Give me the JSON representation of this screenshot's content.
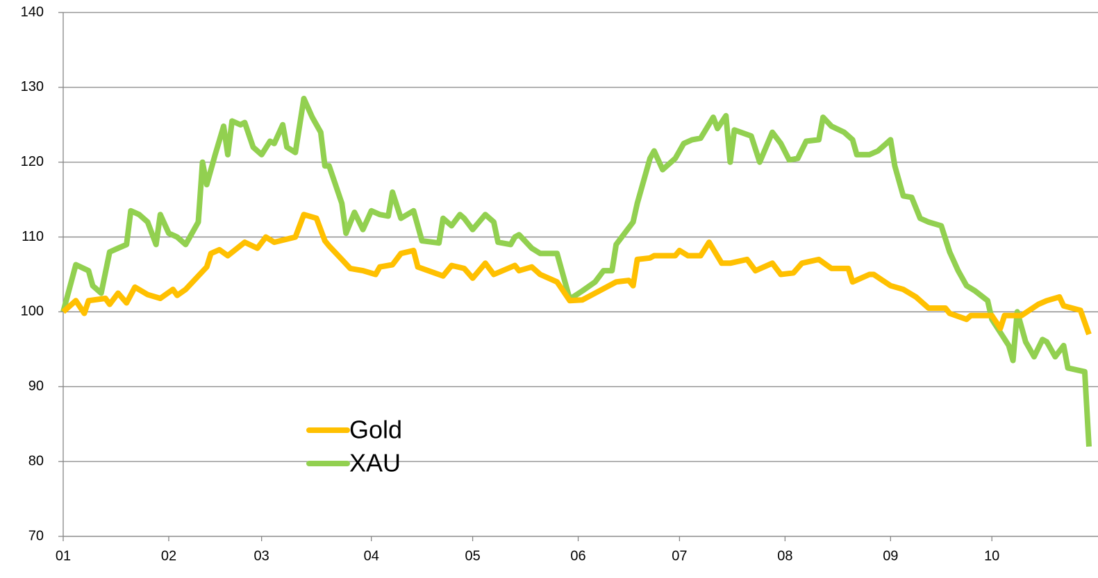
{
  "chart_data": {
    "type": "line",
    "xlim": [
      0,
      243
    ],
    "xticks": [
      {
        "value": 0,
        "label": "01"
      },
      {
        "value": 25,
        "label": "02"
      },
      {
        "value": 47,
        "label": "03"
      },
      {
        "value": 73,
        "label": "04"
      },
      {
        "value": 97,
        "label": "05"
      },
      {
        "value": 122,
        "label": "06"
      },
      {
        "value": 146,
        "label": "07"
      },
      {
        "value": 171,
        "label": "08"
      },
      {
        "value": 196,
        "label": "09"
      },
      {
        "value": 220,
        "label": "10"
      }
    ],
    "ylim": [
      70,
      140
    ],
    "yticks": [
      70,
      80,
      90,
      100,
      110,
      120,
      130,
      140
    ],
    "grid": true,
    "series": [
      {
        "name": "Gold",
        "color": "#ffc000",
        "x": [
          0,
          3,
          5,
          6,
          10,
          11,
          13,
          15,
          17,
          20,
          23,
          26,
          27,
          29,
          34,
          35,
          37,
          39,
          43,
          46,
          48,
          50,
          55,
          57,
          60,
          62,
          63,
          66,
          68,
          71,
          74,
          75,
          78,
          80,
          83,
          84,
          90,
          92,
          95,
          97,
          100,
          102,
          107,
          108,
          111,
          113,
          117,
          120,
          123,
          126,
          131,
          134,
          135,
          136,
          139,
          140,
          145,
          146,
          148,
          151,
          153,
          156,
          158,
          162,
          164,
          168,
          170,
          173,
          175,
          179,
          182,
          186,
          187,
          191,
          192,
          196,
          199,
          202,
          205,
          209,
          210,
          214,
          215,
          220,
          222,
          223,
          227,
          231,
          233,
          236,
          237,
          241,
          243
        ],
        "values": [
          100,
          101.5,
          99.8,
          101.5,
          101.8,
          101,
          102.5,
          101.2,
          103.3,
          102.3,
          101.8,
          103,
          102.2,
          103,
          106,
          107.8,
          108.3,
          107.5,
          109.3,
          108.5,
          110,
          109.3,
          110,
          113,
          112.5,
          109.5,
          108.8,
          107,
          105.8,
          105.5,
          105,
          106,
          106.3,
          107.8,
          108.2,
          106,
          104.8,
          106.2,
          105.8,
          104.5,
          106.5,
          105,
          106.2,
          105.5,
          106,
          105,
          104,
          101.5,
          101.6,
          102.5,
          104,
          104.2,
          103.5,
          107,
          107.2,
          107.5,
          107.5,
          108.2,
          107.5,
          107.5,
          109.3,
          106.5,
          106.5,
          107,
          105.5,
          106.5,
          105,
          105.2,
          106.5,
          107,
          105.8,
          105.8,
          104,
          105,
          105,
          103.5,
          103,
          102,
          100.5,
          100.5,
          99.8,
          99,
          99.5,
          99.5,
          97.8,
          99.5,
          99.5,
          101,
          101.5,
          102,
          100.8,
          100.2,
          97
        ]
      },
      {
        "name": "XAU",
        "color": "#92d050",
        "x": [
          0,
          3,
          6,
          7,
          9,
          11,
          13,
          15,
          16,
          18,
          20,
          22,
          23,
          25,
          27,
          29,
          32,
          33,
          34,
          36,
          38,
          39,
          40,
          42,
          43,
          45,
          47,
          49,
          50,
          52,
          53,
          55,
          57,
          59,
          61,
          62,
          63,
          66,
          67,
          69,
          71,
          73,
          75,
          77,
          78,
          80,
          83,
          85,
          89,
          90,
          92,
          94,
          95,
          97,
          100,
          102,
          103,
          106,
          107,
          108,
          111,
          113,
          117,
          120,
          123,
          126,
          128,
          130,
          131,
          135,
          136,
          139,
          140,
          142,
          145,
          147,
          149,
          151,
          154,
          155,
          157,
          158,
          159,
          163,
          165,
          168,
          170,
          172,
          174,
          176,
          179,
          180,
          182,
          185,
          187,
          188,
          191,
          193,
          196,
          197,
          199,
          201,
          203,
          205,
          208,
          210,
          212,
          214,
          216,
          219,
          220,
          224,
          225,
          226,
          228,
          230,
          232,
          233,
          235,
          237,
          238,
          242,
          243
        ],
        "values": [
          100,
          106.3,
          105.5,
          103.5,
          102.5,
          108,
          108.5,
          109,
          113.5,
          113,
          112,
          109,
          113,
          110.5,
          110,
          109,
          112,
          120,
          117,
          121,
          124.8,
          121,
          125.5,
          125,
          125.3,
          122,
          121,
          122.8,
          122.5,
          125,
          122,
          121.3,
          128.5,
          126,
          124,
          119.5,
          119.5,
          114.5,
          110.5,
          113.3,
          111,
          113.5,
          113,
          112.8,
          116,
          112.5,
          113.5,
          109.5,
          109.2,
          112.5,
          111.5,
          113,
          112.5,
          111,
          113,
          112,
          109.3,
          109,
          110,
          110.3,
          108.5,
          107.8,
          107.8,
          101.7,
          102.8,
          104,
          105.5,
          105.5,
          109,
          112,
          114.5,
          120.5,
          121.5,
          119,
          120.5,
          122.5,
          123,
          123.2,
          126,
          124.5,
          126.2,
          120,
          124.3,
          123.5,
          120,
          124,
          122.5,
          120.3,
          120.5,
          122.8,
          123,
          126,
          124.8,
          124,
          123,
          121,
          121,
          121.5,
          123,
          119.5,
          115.5,
          115.3,
          112.5,
          112,
          111.5,
          108,
          105.5,
          103.5,
          102.8,
          101.5,
          99,
          95.5,
          93.5,
          100,
          96,
          94,
          96.3,
          96,
          94,
          95.5,
          92.5,
          92,
          82
        ]
      }
    ]
  }
}
